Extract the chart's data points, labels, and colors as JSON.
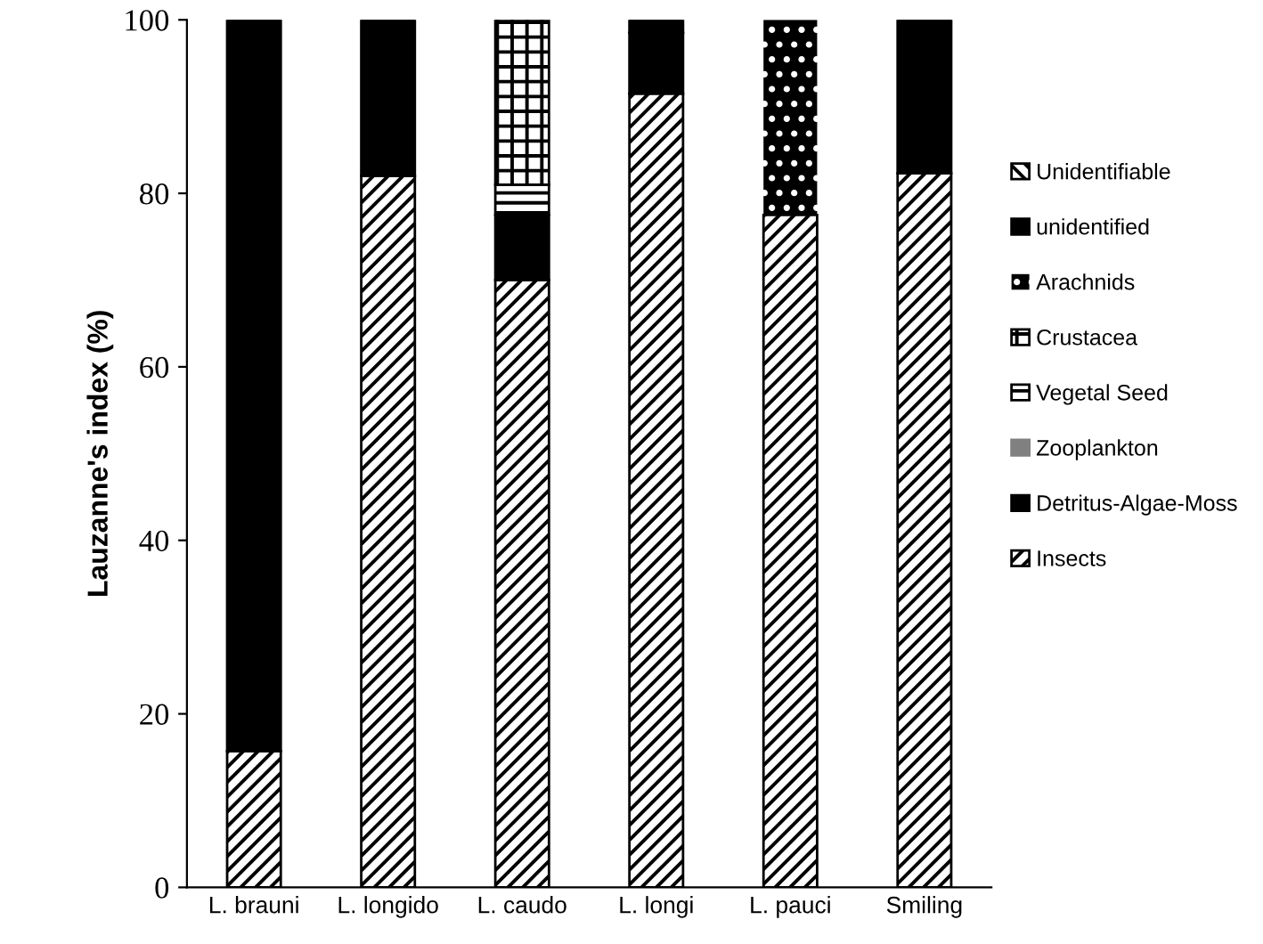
{
  "chart_data": {
    "type": "bar",
    "stacked": true,
    "ylabel": "Lauzanne's index (%)",
    "categories": [
      "L. brauni",
      "L. longido",
      "L. caudo",
      "L. longi",
      "L. pauci",
      "Smiling"
    ],
    "ylim": [
      0,
      100
    ],
    "yticks": [
      0,
      20,
      40,
      60,
      80,
      100
    ],
    "grid": false,
    "legend": "right",
    "series": [
      {
        "name": "Insects",
        "color": "#000000",
        "values": [
          15.7,
          82,
          70,
          91.5,
          77.5,
          82.3
        ]
      },
      {
        "name": "Detritus-Algae-Moss",
        "color": "#000000",
        "values": [
          84.3,
          18,
          7.5,
          7,
          null,
          17.7
        ]
      },
      {
        "name": "Zooplankton",
        "color": "#808080",
        "values": [
          null,
          null,
          null,
          null,
          null,
          null
        ]
      },
      {
        "name": "Vegetal Seed",
        "color": "#000000",
        "values": [
          null,
          null,
          3.5,
          null,
          null,
          null
        ]
      },
      {
        "name": "Crustacea",
        "color": "#000000",
        "values": [
          null,
          null,
          19,
          null,
          null,
          null
        ]
      },
      {
        "name": "Arachnids",
        "color": "#000000",
        "values": [
          null,
          null,
          null,
          null,
          22.5,
          null
        ]
      },
      {
        "name": "unidentified",
        "color": "#000000",
        "values": [
          null,
          null,
          null,
          1.5,
          null,
          null
        ]
      },
      {
        "name": "Unidentifiable",
        "color": "#000000",
        "values": [
          null,
          null,
          null,
          null,
          null,
          null
        ]
      }
    ]
  }
}
